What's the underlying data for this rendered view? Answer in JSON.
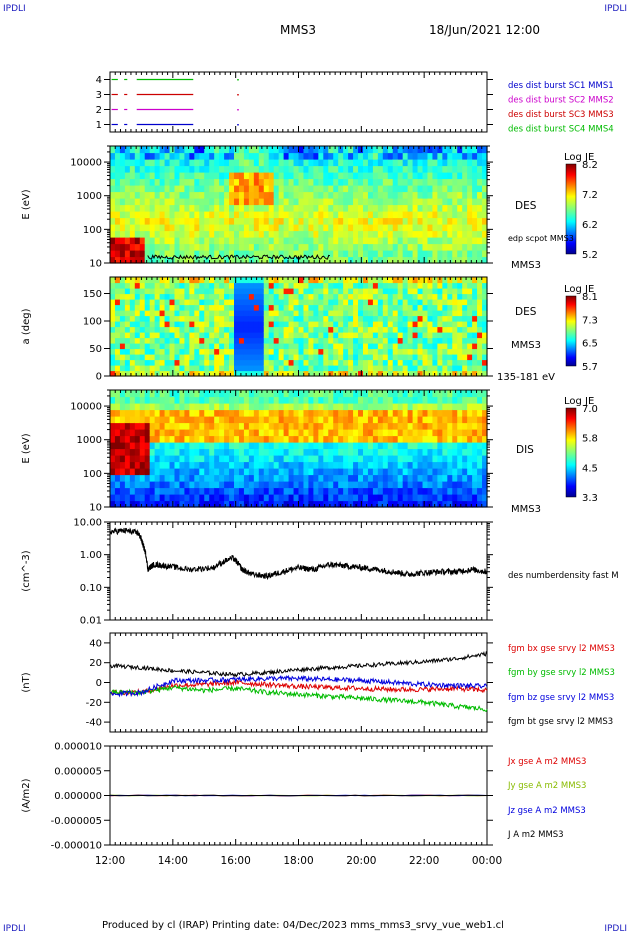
{
  "header": {
    "corner_left": "IPDLI",
    "corner_right": "IPDLI",
    "spacecraft": "MMS3",
    "datetime": "18/Jun/2021 12:00"
  },
  "footer": {
    "text": "Produced by cl (IRAP)   Printing date: 04/Dec/2023   mms_mms3_srvy_vue_web1.cl",
    "corner_left": "IPDLI",
    "corner_right": "IPDLI"
  },
  "colors": {
    "frame": "#000000",
    "blue_label": "#0000cc",
    "magenta": "#cc00cc",
    "red": "#cc0000",
    "green": "#00bb00"
  },
  "chart_data": [
    {
      "type": "line",
      "panel": "burst-availability",
      "ylim": [
        0.5,
        4.5
      ],
      "ytick_labels": [
        "1",
        "2",
        "3",
        "4"
      ],
      "legend_placement": "right",
      "series": [
        {
          "name": "des dist burst SC1 MMS1",
          "level": 1,
          "color": "#0000cc",
          "segments": [
            [
              12.05,
              12.25
            ],
            [
              12.45,
              12.55
            ],
            [
              12.85,
              14.65
            ]
          ],
          "dots": [
            16.05
          ]
        },
        {
          "name": "des dist burst SC2 MMS2",
          "level": 2,
          "color": "#cc00cc",
          "segments": [
            [
              12.05,
              12.25
            ],
            [
              12.45,
              12.55
            ],
            [
              12.85,
              14.65
            ]
          ],
          "dots": [
            16.05
          ]
        },
        {
          "name": "des dist burst SC3 MMS3",
          "level": 3,
          "color": "#cc0000",
          "segments": [
            [
              12.05,
              12.25
            ],
            [
              12.45,
              12.55
            ],
            [
              12.85,
              14.65
            ]
          ],
          "dots": [
            16.05
          ]
        },
        {
          "name": "des dist burst SC4 MMS4",
          "level": 4,
          "color": "#00bb00",
          "segments": [
            [
              12.05,
              12.25
            ],
            [
              12.45,
              12.55
            ],
            [
              12.85,
              14.65
            ]
          ],
          "dots": [
            16.05
          ]
        }
      ]
    },
    {
      "type": "heatmap",
      "panel": "des-energy",
      "ylabel": "E (eV)",
      "yscale": "log",
      "ylim": [
        10,
        30000
      ],
      "ytick_labels": [
        "10",
        "100",
        "1000",
        "10000"
      ],
      "side_labels": [
        "DES",
        "edp scpot MMS3",
        "MMS3"
      ],
      "colorbar": {
        "label": "Log JE",
        "ticks": [
          "8.2",
          "7.2",
          "6.2",
          "5.2"
        ],
        "range": [
          5.2,
          8.2
        ]
      },
      "overlay": {
        "name": "edp scpot MMS3",
        "x_range": [
          13.2,
          19.0
        ],
        "level_ev": 15
      }
    },
    {
      "type": "heatmap",
      "panel": "des-pitch-angle",
      "ylabel": "a (deg)",
      "ylim": [
        0,
        180
      ],
      "ytick_labels": [
        "0",
        "50",
        "100",
        "150"
      ],
      "side_labels": [
        "DES",
        "MMS3",
        "135-181 eV"
      ],
      "colorbar": {
        "label": "Log JE",
        "ticks": [
          "8.1",
          "7.3",
          "6.5",
          "5.7"
        ],
        "range": [
          5.7,
          8.1
        ]
      }
    },
    {
      "type": "heatmap",
      "panel": "dis-energy",
      "ylabel": "E (eV)",
      "yscale": "log",
      "ylim": [
        10,
        30000
      ],
      "ytick_labels": [
        "10",
        "100",
        "1000",
        "10000"
      ],
      "side_labels": [
        "DIS",
        "MMS3"
      ],
      "colorbar": {
        "label": "Log JE",
        "ticks": [
          "7.0",
          "5.8",
          "4.5",
          "3.3"
        ],
        "range": [
          3.3,
          7.0
        ]
      }
    },
    {
      "type": "line",
      "panel": "density",
      "ylabel": "(cm^-3)",
      "yscale": "log",
      "ylim": [
        0.01,
        10
      ],
      "ytick_labels": [
        "0.01",
        "0.10",
        "1.00",
        "10.00"
      ],
      "series": [
        {
          "name": "des numberdensity fast M",
          "color": "#000000",
          "x": [
            12.0,
            12.5,
            12.9,
            13.05,
            13.2,
            13.4,
            13.8,
            14.5,
            15.3,
            15.9,
            16.2,
            16.5,
            17.0,
            17.5,
            18.0,
            18.5,
            19.0,
            19.5,
            20.0,
            20.5,
            21.0,
            21.5,
            22.0,
            22.5,
            23.0,
            23.5,
            24.0
          ],
          "y": [
            5.0,
            5.5,
            4.5,
            2.0,
            0.35,
            0.5,
            0.45,
            0.35,
            0.4,
            0.8,
            0.35,
            0.25,
            0.22,
            0.3,
            0.4,
            0.35,
            0.5,
            0.45,
            0.4,
            0.35,
            0.3,
            0.25,
            0.28,
            0.3,
            0.3,
            0.35,
            0.3
          ]
        }
      ]
    },
    {
      "type": "line",
      "panel": "magnetic-field",
      "ylabel": "(nT)",
      "ylim": [
        -50,
        50
      ],
      "ytick_labels": [
        "-40",
        "-20",
        "0",
        "20",
        "40"
      ],
      "series": [
        {
          "name": "fgm bx gse srvy l2 MMS3",
          "color": "#dd0000",
          "x": [
            12.0,
            13.0,
            14.0,
            15.0,
            16.0,
            17.0,
            18.0,
            19.0,
            20.0,
            21.0,
            22.0,
            23.0,
            24.0
          ],
          "y": [
            -10,
            -10,
            -3,
            -2,
            0,
            -2,
            -4,
            -5,
            -6,
            -7,
            -7,
            -6,
            -8
          ]
        },
        {
          "name": "fgm by gse srvy l2 MMS3",
          "color": "#00bb00",
          "x": [
            12.0,
            13.0,
            14.0,
            15.0,
            16.0,
            17.0,
            18.0,
            19.0,
            20.0,
            21.0,
            22.0,
            23.0,
            24.0
          ],
          "y": [
            -10,
            -10,
            -5,
            -8,
            -6,
            -10,
            -12,
            -14,
            -16,
            -18,
            -20,
            -24,
            -27
          ]
        },
        {
          "name": "fgm bz gse srvy l2 MMS3",
          "color": "#0000dd",
          "x": [
            12.0,
            13.0,
            14.0,
            15.0,
            16.0,
            17.0,
            18.0,
            19.0,
            20.0,
            21.0,
            22.0,
            23.0,
            24.0
          ],
          "y": [
            -12,
            -10,
            2,
            2,
            3,
            4,
            4,
            3,
            2,
            0,
            -2,
            -3,
            -4
          ]
        },
        {
          "name": "fgm bt gse srvy l2 MMS3",
          "color": "#000000",
          "x": [
            12.0,
            13.0,
            14.0,
            15.0,
            16.0,
            17.0,
            18.0,
            19.0,
            20.0,
            21.0,
            22.0,
            23.0,
            24.0
          ],
          "y": [
            17,
            15,
            12,
            10,
            8,
            10,
            13,
            15,
            17,
            19,
            21,
            24,
            29
          ]
        }
      ]
    },
    {
      "type": "line",
      "panel": "current-density",
      "ylabel": "(A/m2)",
      "ylim": [
        -1e-05,
        1e-05
      ],
      "ytick_labels": [
        "-0.000010",
        "-0.000005",
        "0.000000",
        "0.000005",
        "0.000010"
      ],
      "series": [
        {
          "name": "Jx gse A m2 MMS3",
          "color": "#dd0000",
          "x": [
            12.0,
            24.0
          ],
          "y": [
            0,
            0
          ]
        },
        {
          "name": "Jy gse A m2 MMS3",
          "color": "#88bb00",
          "x": [
            12.0,
            24.0
          ],
          "y": [
            0,
            0
          ]
        },
        {
          "name": "Jz gse A m2 MMS3",
          "color": "#0000dd",
          "x": [
            12.0,
            24.0
          ],
          "y": [
            0,
            0
          ]
        },
        {
          "name": "J A m2 MMS3",
          "color": "#000000",
          "x": [
            12.0,
            24.0
          ],
          "y": [
            0,
            0
          ]
        }
      ],
      "x_tick_labels": [
        "12:00",
        "14:00",
        "16:00",
        "18:00",
        "20:00",
        "22:00",
        "00:00"
      ],
      "xlim": [
        12,
        24
      ]
    }
  ]
}
